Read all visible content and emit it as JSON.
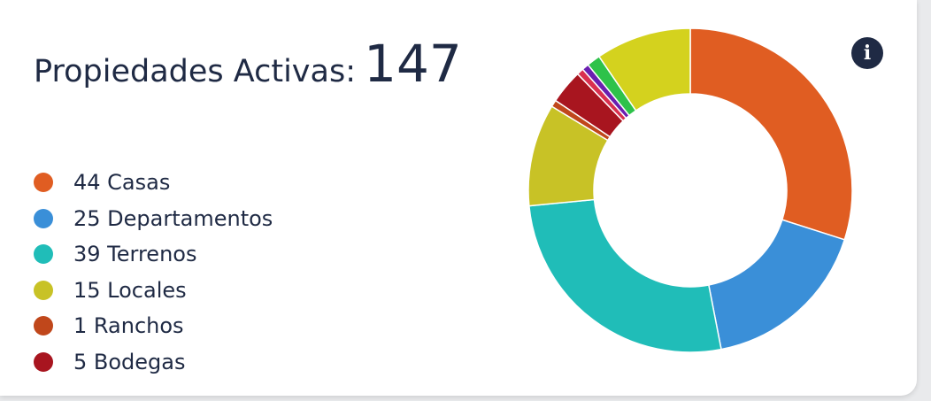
{
  "card": {
    "title_label": "Propiedades Activas:",
    "title_value": "147"
  },
  "info_icon": "info-circle-icon",
  "legend": [
    {
      "text": "44 Casas",
      "color": "#e05d22"
    },
    {
      "text": "25 Departamentos",
      "color": "#3a8fd8"
    },
    {
      "text": "39 Terrenos",
      "color": "#20bdb8"
    },
    {
      "text": "15 Locales",
      "color": "#c8c226"
    },
    {
      "text": "1 Ranchos",
      "color": "#c0471b"
    },
    {
      "text": "5 Bodegas",
      "color": "#a8151f"
    }
  ],
  "chart_data": {
    "type": "pie",
    "donut": true,
    "total": 147,
    "series": [
      {
        "name": "Casas",
        "value": 44,
        "color": "#e05d22"
      },
      {
        "name": "Departamentos",
        "value": 25,
        "color": "#3a8fd8"
      },
      {
        "name": "Terrenos",
        "value": 39,
        "color": "#20bdb8"
      },
      {
        "name": "Locales",
        "value": 15,
        "color": "#c8c226"
      },
      {
        "name": "Ranchos",
        "value": 1,
        "color": "#c0471b"
      },
      {
        "name": "Bodegas",
        "value": 5,
        "color": "#a8151f"
      },
      {
        "name": "",
        "value": 1,
        "color": "#d9304f"
      },
      {
        "name": "",
        "value": 1,
        "color": "#6a1fb0"
      },
      {
        "name": "",
        "value": 2,
        "color": "#2ec24a"
      },
      {
        "name": "",
        "value": 14,
        "color": "#d4d21e"
      }
    ]
  }
}
